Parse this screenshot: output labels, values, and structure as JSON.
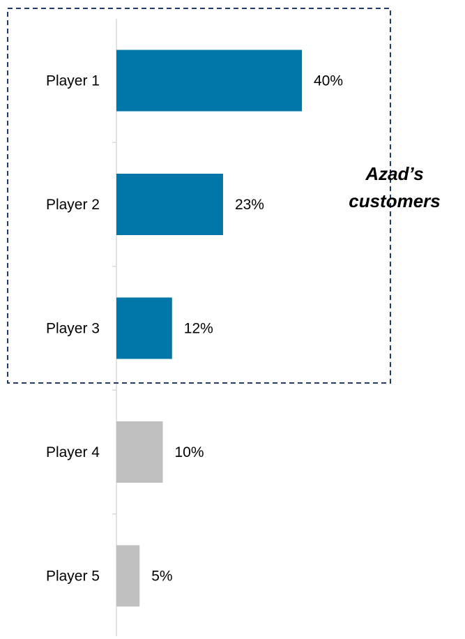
{
  "chart_data": {
    "type": "bar",
    "orientation": "horizontal",
    "categories": [
      "Player 1",
      "Player 2",
      "Player 3",
      "Player 4",
      "Player 5"
    ],
    "values": [
      40,
      23,
      12,
      10,
      5
    ],
    "value_labels": [
      "40%",
      "23%",
      "12%",
      "10%",
      "5%"
    ],
    "xlim": [
      0,
      70
    ],
    "grid": false,
    "legend": "none",
    "bar_colors": [
      "#0077A8",
      "#0077A8",
      "#0077A8",
      "#C0C0C0",
      "#C0C0C0"
    ],
    "highlight_group": {
      "label_line1": "Azad’s",
      "label_line2": "customers",
      "members": [
        "Player 1",
        "Player 2",
        "Player 3"
      ],
      "border_color": "#1F3A6E"
    }
  }
}
